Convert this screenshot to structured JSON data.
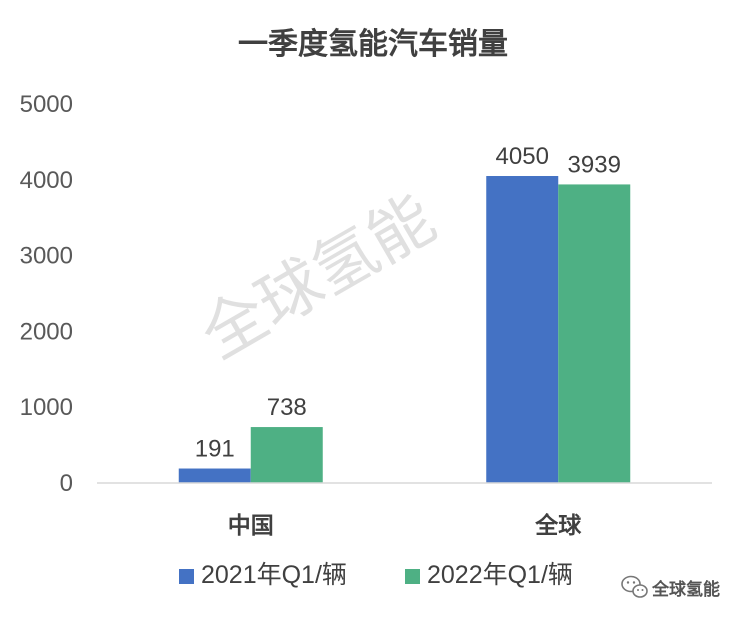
{
  "chart_data": {
    "type": "bar",
    "title": "一季度氢能汽车销量",
    "categories": [
      "中国",
      "全球"
    ],
    "series": [
      {
        "name": "2021年Q1/辆",
        "values": [
          191,
          4050
        ],
        "color": "#4472C4"
      },
      {
        "name": "2022年Q1/辆",
        "values": [
          738,
          3939
        ],
        "color": "#4EB084"
      }
    ],
    "ylim": [
      0,
      5000
    ],
    "yticks": [
      0,
      1000,
      2000,
      3000,
      4000,
      5000
    ],
    "xlabel": "",
    "ylabel": "",
    "grid": false,
    "data_labels": true,
    "legend_position": "bottom"
  },
  "watermark": {
    "text": "全球氢能",
    "color": "#c8c8c8"
  },
  "brand": {
    "text": "全球氢能",
    "icon": "wechat-icon"
  }
}
